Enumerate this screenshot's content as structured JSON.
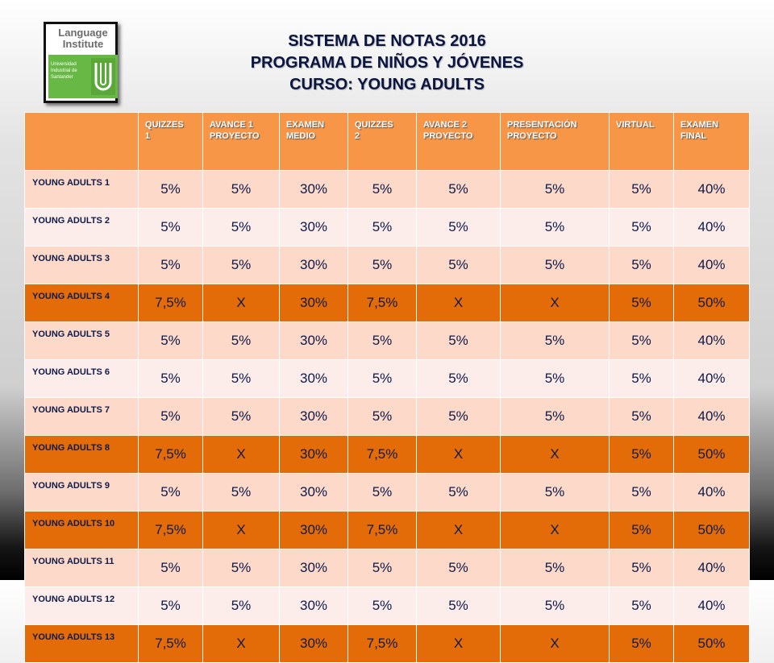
{
  "logo": {
    "line1": "Language",
    "line2": "Institute",
    "university_lines": [
      "Universidad",
      "Industrial de",
      "Santander"
    ],
    "mark": "UIS"
  },
  "title": {
    "line1": "SISTEMA DE NOTAS 2016",
    "line2": "PROGRAMA DE NIÑOS Y JÓVENES",
    "line3": "CURSO: YOUNG ADULTS"
  },
  "colors": {
    "header": "#f79646",
    "row_light": "#fcd9c9",
    "row_lighter": "#fdedea",
    "row_highlight": "#e36c09",
    "title_text": "#0a1540"
  },
  "table": {
    "headers": [
      [
        "QUIZZES",
        "1"
      ],
      [
        "AVANCE 1",
        "PROYECTO"
      ],
      [
        "EXAMEN",
        "MEDIO"
      ],
      [
        "QUIZZES",
        "2"
      ],
      [
        "AVANCE 2",
        "PROYECTO"
      ],
      [
        "PRESENTACIÓN",
        "PROYECTO"
      ],
      [
        "VIRTUAL"
      ],
      [
        "EXAMEN",
        "FINAL"
      ]
    ],
    "rows": [
      {
        "label": "YOUNG ADULTS 1",
        "values": [
          "5%",
          "5%",
          "30%",
          "5%",
          "5%",
          "5%",
          "5%",
          "40%"
        ]
      },
      {
        "label": "YOUNG ADULTS 2",
        "values": [
          "5%",
          "5%",
          "30%",
          "5%",
          "5%",
          "5%",
          "5%",
          "40%"
        ]
      },
      {
        "label": "YOUNG ADULTS 3",
        "values": [
          "5%",
          "5%",
          "30%",
          "5%",
          "5%",
          "5%",
          "5%",
          "40%"
        ]
      },
      {
        "label": "YOUNG ADULTS 4",
        "values": [
          "7,5%",
          "X",
          "30%",
          "7,5%",
          "X",
          "X",
          "5%",
          "50%"
        ]
      },
      {
        "label": "YOUNG ADULTS 5",
        "values": [
          "5%",
          "5%",
          "30%",
          "5%",
          "5%",
          "5%",
          "5%",
          "40%"
        ]
      },
      {
        "label": "YOUNG ADULTS 6",
        "values": [
          "5%",
          "5%",
          "30%",
          "5%",
          "5%",
          "5%",
          "5%",
          "40%"
        ]
      },
      {
        "label": "YOUNG ADULTS 7",
        "values": [
          "5%",
          "5%",
          "30%",
          "5%",
          "5%",
          "5%",
          "5%",
          "40%"
        ]
      },
      {
        "label": "YOUNG ADULTS 8",
        "values": [
          "7,5%",
          "X",
          "30%",
          "7,5%",
          "X",
          "X",
          "5%",
          "50%"
        ]
      },
      {
        "label": "YOUNG ADULTS 9",
        "values": [
          "5%",
          "5%",
          "30%",
          "5%",
          "5%",
          "5%",
          "5%",
          "40%"
        ]
      },
      {
        "label": "YOUNG ADULTS 10",
        "values": [
          "7,5%",
          "X",
          "30%",
          "7,5%",
          "X",
          "X",
          "5%",
          "50%"
        ]
      },
      {
        "label": "YOUNG ADULTS 11",
        "values": [
          "5%",
          "5%",
          "30%",
          "5%",
          "5%",
          "5%",
          "5%",
          "40%"
        ]
      },
      {
        "label": "YOUNG ADULTS 12",
        "values": [
          "5%",
          "5%",
          "30%",
          "5%",
          "5%",
          "5%",
          "5%",
          "40%"
        ]
      },
      {
        "label": "YOUNG ADULTS 13",
        "values": [
          "7,5%",
          "X",
          "30%",
          "7,5%",
          "X",
          "X",
          "5%",
          "50%"
        ]
      }
    ]
  }
}
